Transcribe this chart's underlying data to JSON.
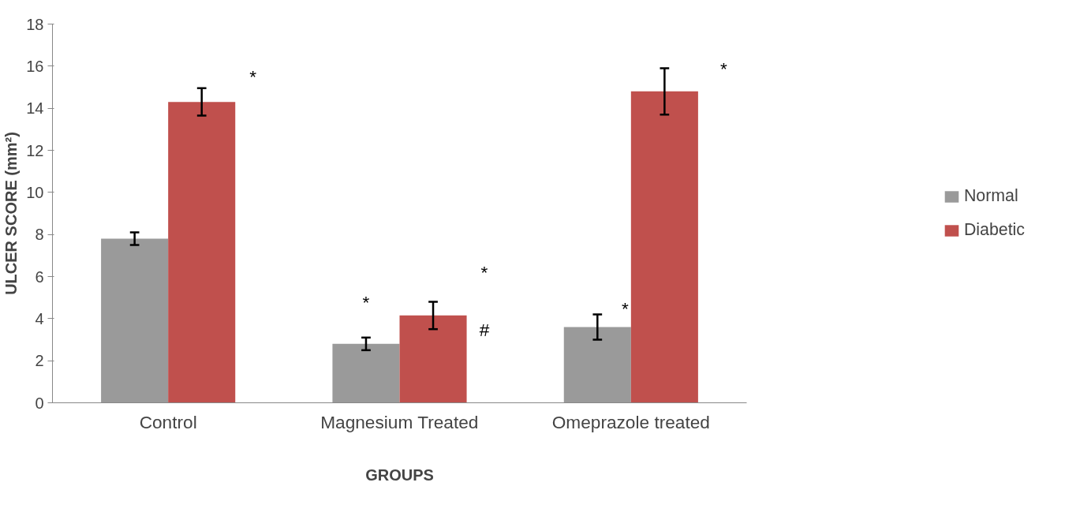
{
  "chart_data": {
    "type": "bar",
    "xlabel": "GROUPS",
    "ylabel": "ULCER SCORE (mm²)",
    "categories": [
      "Control",
      "Magnesium Treated",
      "Omeprazole treated"
    ],
    "series": [
      {
        "name": "Normal",
        "color": "#9a9a9a",
        "values": [
          7.8,
          2.8,
          3.6
        ],
        "errors": [
          0.3,
          0.3,
          0.6
        ]
      },
      {
        "name": "Diabetic",
        "color": "#c0504d",
        "values": [
          14.3,
          4.15,
          14.8
        ],
        "errors": [
          0.65,
          0.65,
          1.1
        ]
      }
    ],
    "ylim": [
      0,
      18
    ],
    "yticks": [
      0,
      2,
      4,
      6,
      8,
      10,
      12,
      14,
      16,
      18
    ],
    "grid": false,
    "legend": "right",
    "annotations": [
      "*",
      "*",
      "*",
      "#",
      "*",
      "*"
    ]
  }
}
